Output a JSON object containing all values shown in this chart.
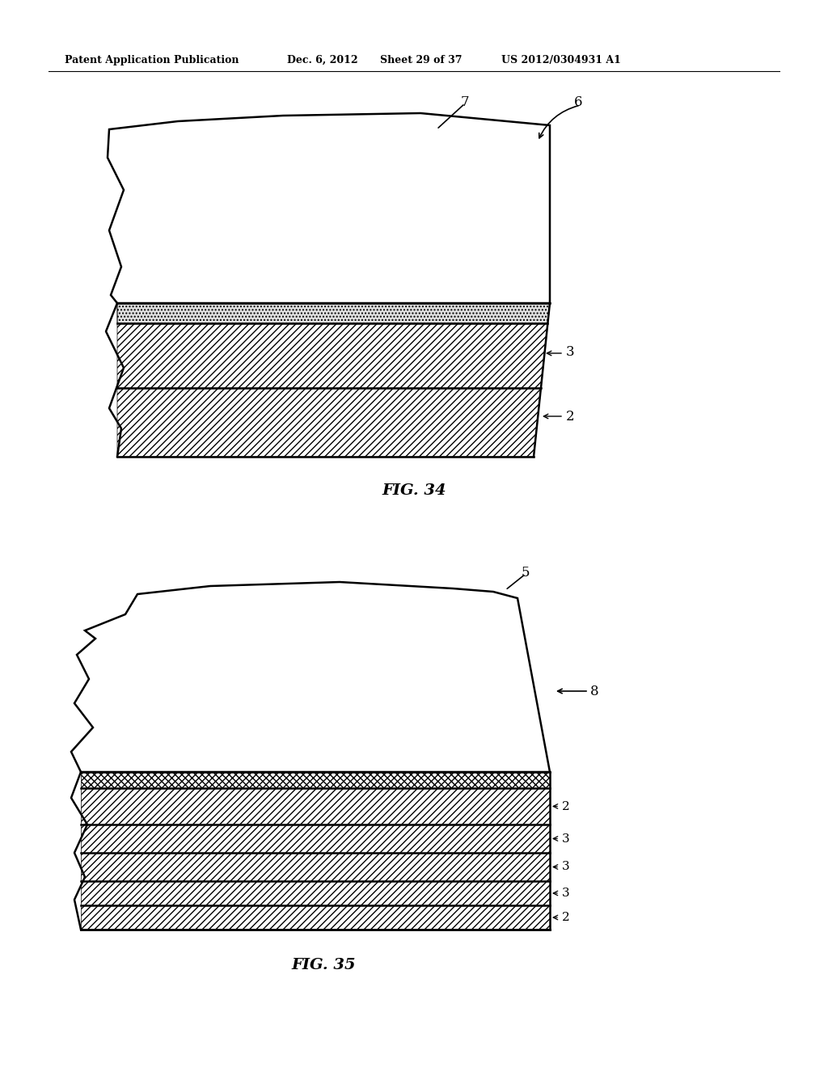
{
  "header_text": "Patent Application Publication",
  "header_date": "Dec. 6, 2012",
  "header_sheet": "Sheet 29 of 37",
  "header_patent": "US 2012/0304931 A1",
  "bg_color": "#ffffff",
  "line_color": "#000000"
}
